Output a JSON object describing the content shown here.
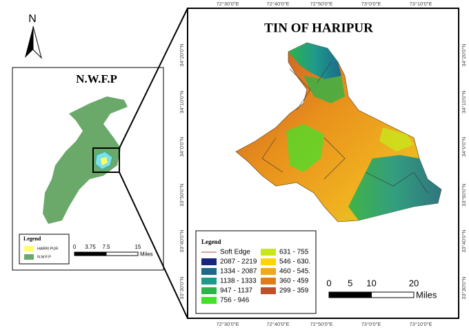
{
  "north_arrow": {
    "label": "N"
  },
  "inset": {
    "title": "N.W.F.P",
    "legend": {
      "title": "Legend",
      "items": [
        {
          "label": "HARRI PUR",
          "color": "#ffff66"
        },
        {
          "label": "N.W.F.P",
          "color": "#6aa96a"
        }
      ]
    },
    "scale": {
      "ticks": [
        0,
        3.75,
        7.5,
        15
      ],
      "unit": "Miles"
    }
  },
  "main": {
    "title": "TIN OF HARIPUR",
    "longitudes": [
      "72°30'0\"E",
      "72°40'0\"E",
      "72°50'0\"E",
      "73°0'0\"E",
      "73°10'0\"E"
    ],
    "latitudes": [
      "34°20'0\"N",
      "34°10'0\"N",
      "34°0'0\"N",
      "33°50'0\"N",
      "33°40'0\"N",
      "33°30'0\"N"
    ],
    "legend": {
      "title": "Legend",
      "items": [
        {
          "label": "Soft Edge",
          "color": "#d08080",
          "symbol": "line"
        },
        {
          "label": "2087 - 2219",
          "color": "#1a237e"
        },
        {
          "label": "1334 - 2087",
          "color": "#1d6a8a"
        },
        {
          "label": "1138 - 1333",
          "color": "#1f9a8a"
        },
        {
          "label": "947 - 1137",
          "color": "#2eb34a"
        },
        {
          "label": "756 - 946",
          "color": "#44e02a"
        },
        {
          "label": "631 - 755",
          "color": "#c8e61a"
        },
        {
          "label": "546 - 630.",
          "color": "#ffd500"
        },
        {
          "label": "460 - 545.",
          "color": "#f0a820"
        },
        {
          "label": "360 - 459",
          "color": "#e07b1c"
        },
        {
          "label": "299 - 359",
          "color": "#c0502a"
        }
      ]
    },
    "scale": {
      "ticks": [
        0,
        5,
        10,
        20
      ],
      "unit": "Miles"
    }
  }
}
